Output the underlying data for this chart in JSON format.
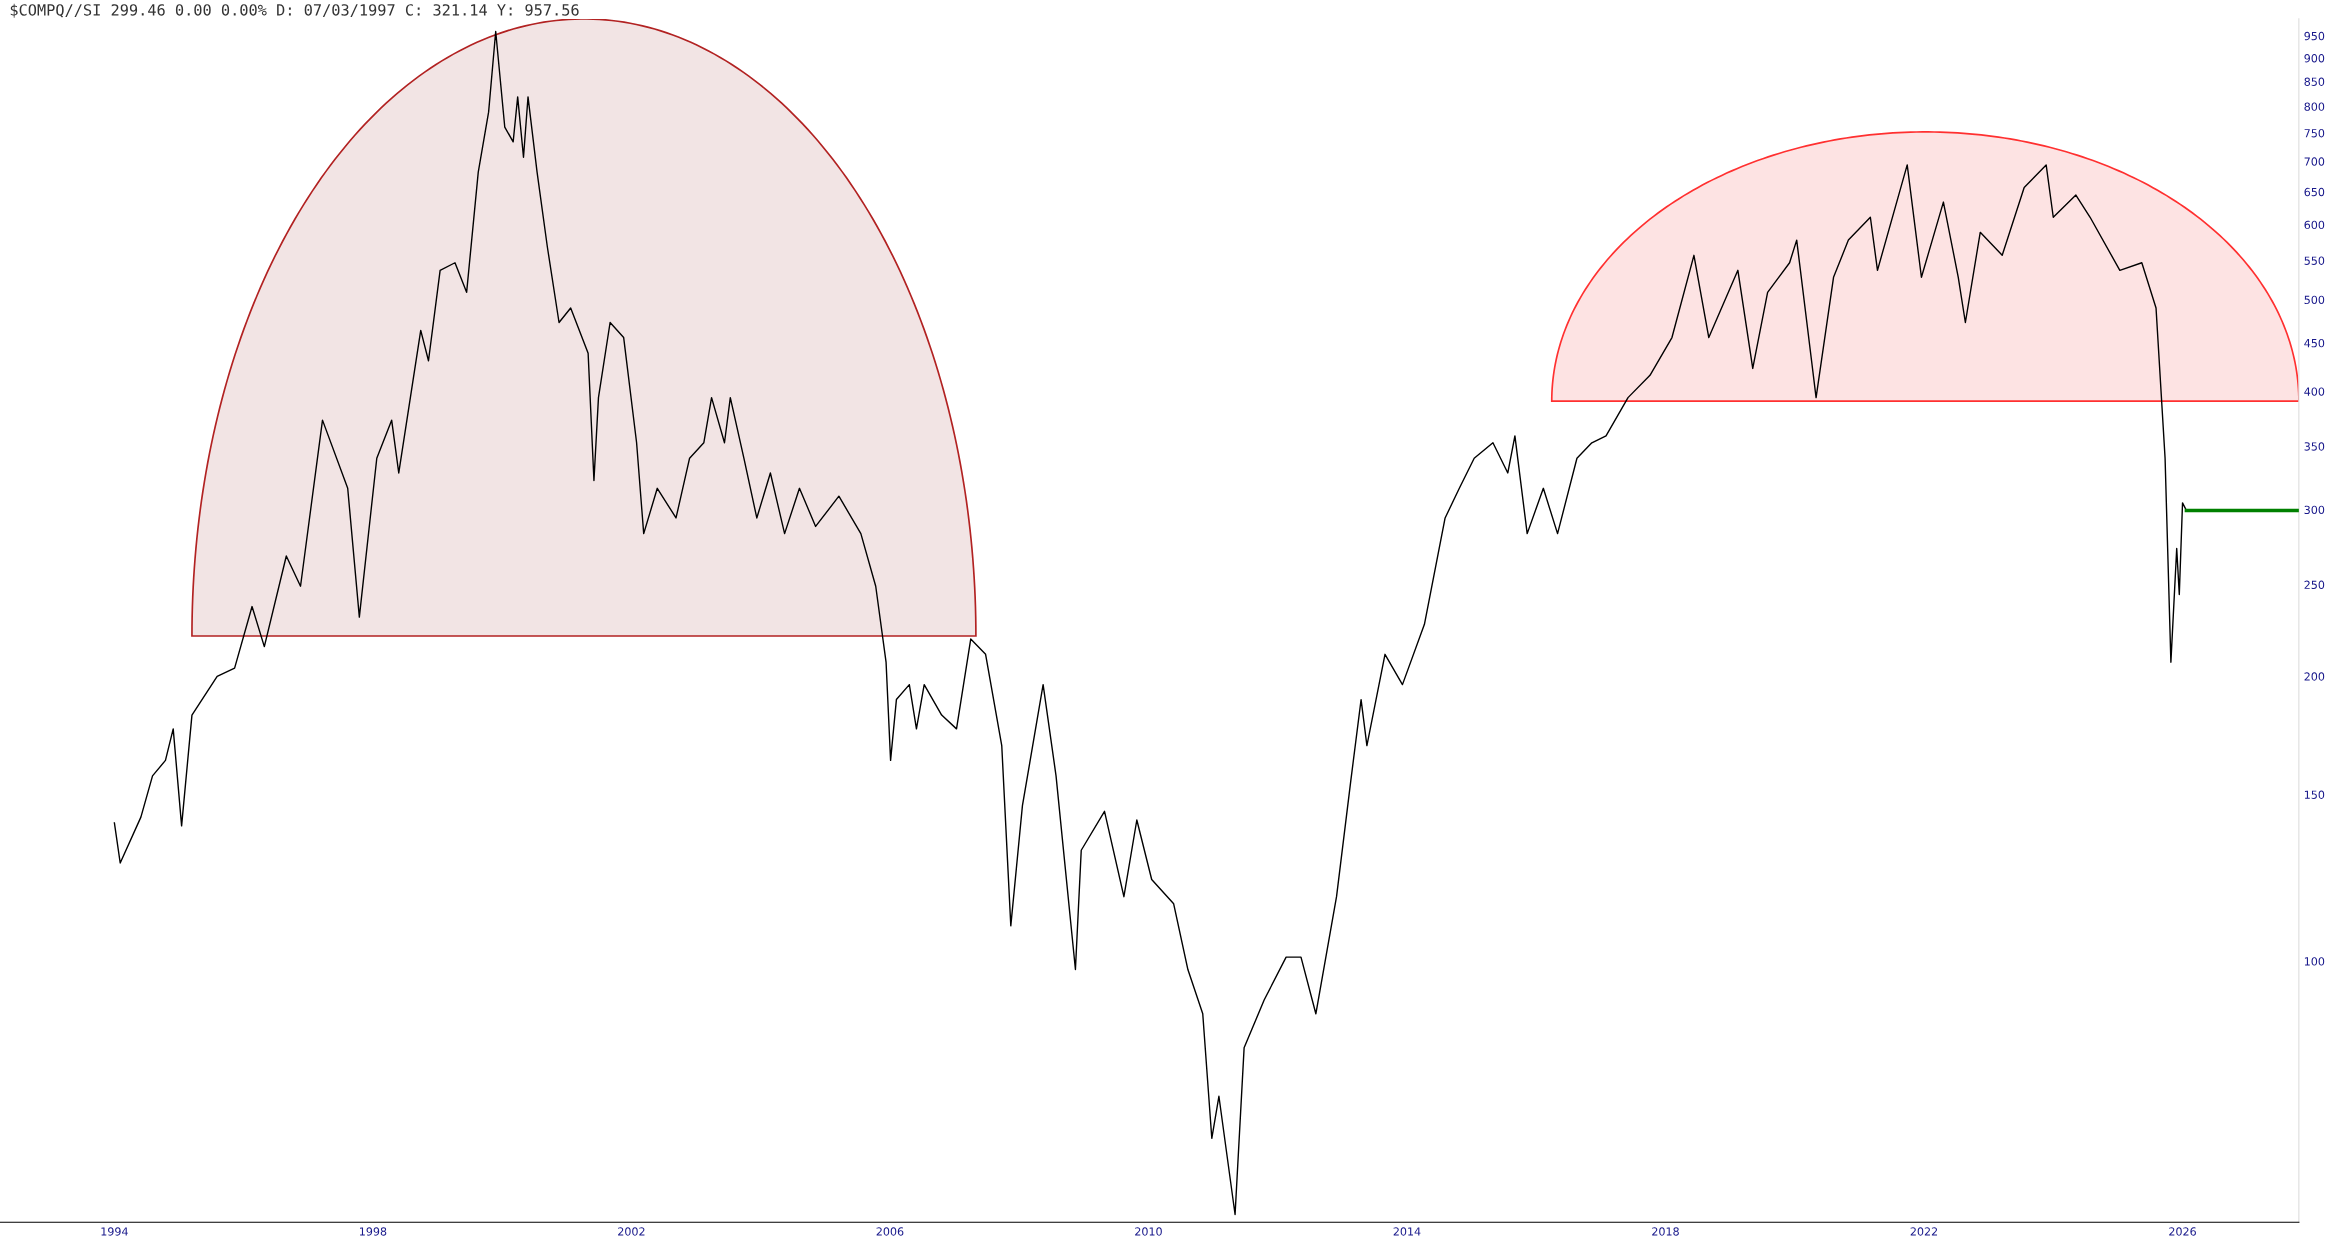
{
  "chart_data": {
    "type": "line",
    "title": "$COMPQ//SI 299.46 0.00 0.00% D: 07/03/1997 C: 321.14 Y: 957.56",
    "log": "y",
    "grid": false,
    "legend": false,
    "marker": "none",
    "line_style": "solid",
    "xlim": [
      1992.23,
      2027.8
    ],
    "xticks": [
      1994,
      1998,
      2002,
      2006,
      2010,
      2014,
      2018,
      2022,
      2026
    ],
    "ylim": [
      53,
      990
    ],
    "yticks": [
      100,
      150,
      200,
      250,
      300,
      350,
      400,
      450,
      500,
      550,
      600,
      650,
      700,
      750,
      800,
      850,
      900,
      950
    ],
    "series": [
      {
        "color": "#000000",
        "x": [
          1994.0,
          1994.09,
          1994.41,
          1994.59,
          1994.79,
          1994.91,
          1995.04,
          1995.2,
          1995.59,
          1995.86,
          1996.13,
          1996.32,
          1996.66,
          1996.88,
          1997.22,
          1997.61,
          1997.79,
          1998.06,
          1998.29,
          1998.4,
          1998.74,
          1998.86,
          1999.04,
          1999.27,
          1999.45,
          1999.63,
          1999.79,
          1999.9,
          2000.04,
          2000.17,
          2000.24,
          2000.33,
          2000.4,
          2000.54,
          2000.7,
          2000.88,
          2001.06,
          2001.33,
          2001.42,
          2001.49,
          2001.67,
          2001.88,
          2002.08,
          2002.19,
          2002.4,
          2002.69,
          2002.9,
          2003.12,
          2003.24,
          2003.44,
          2003.53,
          2003.74,
          2003.94,
          2004.15,
          2004.37,
          2004.6,
          2004.85,
          2005.21,
          2005.55,
          2005.78,
          2005.94,
          2006.01,
          2006.1,
          2006.3,
          2006.41,
          2006.53,
          2006.8,
          2007.03,
          2007.25,
          2007.48,
          2007.73,
          2007.87,
          2008.05,
          2008.37,
          2008.57,
          2008.87,
          2008.96,
          2009.32,
          2009.62,
          2009.82,
          2010.05,
          2010.39,
          2010.61,
          2010.84,
          2010.98,
          2011.09,
          2011.34,
          2011.48,
          2011.79,
          2012.13,
          2012.36,
          2012.59,
          2012.91,
          2013.13,
          2013.29,
          2013.38,
          2013.66,
          2013.93,
          2014.27,
          2014.59,
          2014.81,
          2015.04,
          2015.33,
          2015.56,
          2015.67,
          2015.86,
          2016.11,
          2016.33,
          2016.63,
          2016.86,
          2017.08,
          2017.42,
          2017.76,
          2018.1,
          2018.44,
          2018.67,
          2019.12,
          2019.35,
          2019.58,
          2019.92,
          2020.03,
          2020.26,
          2020.33,
          2020.6,
          2020.83,
          2021.17,
          2021.28,
          2021.74,
          2021.96,
          2022.3,
          2022.53,
          2022.64,
          2022.87,
          2023.21,
          2023.55,
          2023.89,
          2024.0,
          2024.35,
          2024.57,
          2025.03,
          2025.37,
          2025.59,
          2025.73,
          2025.82,
          2025.91,
          2025.95,
          2026.0,
          2026.06
        ],
        "values": [
          140,
          127,
          142,
          157,
          163,
          176,
          139,
          182,
          200,
          204,
          237,
          215,
          268,
          249,
          373,
          316,
          231,
          340,
          373,
          328,
          464,
          431,
          537,
          547,
          509,
          682,
          789,
          960,
          761,
          734,
          819,
          707,
          819,
          682,
          568,
          473,
          490,
          439,
          322,
          394,
          473,
          456,
          353,
          283,
          316,
          294,
          340,
          353,
          394,
          353,
          394,
          340,
          294,
          328,
          283,
          316,
          288,
          310,
          283,
          249,
          207,
          163,
          189,
          196,
          176,
          196,
          182,
          176,
          219,
          211,
          169,
          109,
          146,
          196,
          157,
          98,
          131,
          144,
          117,
          141,
          122,
          115,
          98,
          88,
          65,
          72,
          54,
          81,
          91,
          101,
          101,
          88,
          117,
          155,
          189,
          169,
          211,
          196,
          227,
          294,
          316,
          340,
          353,
          328,
          359,
          283,
          316,
          283,
          340,
          353,
          359,
          394,
          416,
          456,
          557,
          456,
          537,
          423,
          509,
          547,
          578,
          431,
          394,
          528,
          578,
          611,
          537,
          694,
          528,
          634,
          528,
          473,
          589,
          557,
          657,
          694,
          611,
          645,
          611,
          537,
          547,
          490,
          340,
          207,
          273,
          244,
          305,
          299.46
        ]
      },
      {
        "color": "#008000",
        "x": [
          2026.06,
          2027.8
        ],
        "values": [
          299.46,
          299.46
        ]
      }
    ]
  }
}
